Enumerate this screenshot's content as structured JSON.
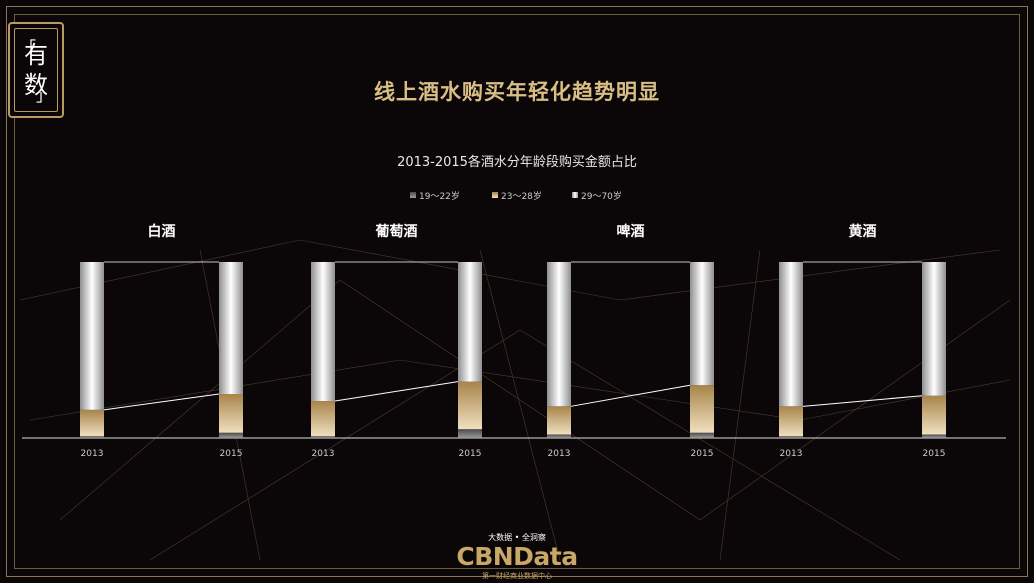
{
  "badge": {
    "line1": "有",
    "line2": "数",
    "bracket_open": "「",
    "bracket_close": "」"
  },
  "page_title": "线上酒水购买年轻化趋势明显",
  "colors": {
    "gold": "#d9be86",
    "frame": "#8c7650",
    "background": "#0b0708",
    "series_19_22": "#6b6b6b",
    "series_23_28": "#b8925a",
    "series_29_70": "#e6e6e6"
  },
  "chart_data": {
    "type": "bar",
    "stacked": true,
    "percent": true,
    "title": "2013-2015各酒水分年龄段购买金额占比",
    "legend": {
      "position": "top-center",
      "entries": [
        "19～22岁",
        "23～28岁",
        "29～70岁"
      ]
    },
    "xlabel": "",
    "ylabel": "",
    "ylim": [
      0,
      100
    ],
    "grid": false,
    "groups": [
      {
        "name": "白酒",
        "categories": [
          "2013",
          "2015"
        ],
        "series": [
          {
            "name": "19～22岁",
            "values": [
              1,
              3
            ]
          },
          {
            "name": "23～28岁",
            "values": [
              15,
              22
            ]
          },
          {
            "name": "29～70岁",
            "values": [
              84,
              75
            ]
          }
        ]
      },
      {
        "name": "葡萄酒",
        "categories": [
          "2013",
          "2015"
        ],
        "series": [
          {
            "name": "19～22岁",
            "values": [
              1,
              5
            ]
          },
          {
            "name": "23～28岁",
            "values": [
              20,
              27
            ]
          },
          {
            "name": "29～70岁",
            "values": [
              79,
              68
            ]
          }
        ]
      },
      {
        "name": "啤酒",
        "categories": [
          "2013",
          "2015"
        ],
        "series": [
          {
            "name": "19～22岁",
            "values": [
              2,
              3
            ]
          },
          {
            "name": "23～28岁",
            "values": [
              16,
              27
            ]
          },
          {
            "name": "29～70岁",
            "values": [
              82,
              70
            ]
          }
        ]
      },
      {
        "name": "黄酒",
        "categories": [
          "2013",
          "2015"
        ],
        "series": [
          {
            "name": "19～22岁",
            "values": [
              1,
              2
            ]
          },
          {
            "name": "23～28岁",
            "values": [
              17,
              22
            ]
          },
          {
            "name": "29～70岁",
            "values": [
              82,
              76
            ]
          }
        ]
      }
    ]
  },
  "footer": {
    "slogan": "大数据 • 全洞察",
    "logo": "CBNData",
    "sub": "第一财经商业数据中心"
  }
}
